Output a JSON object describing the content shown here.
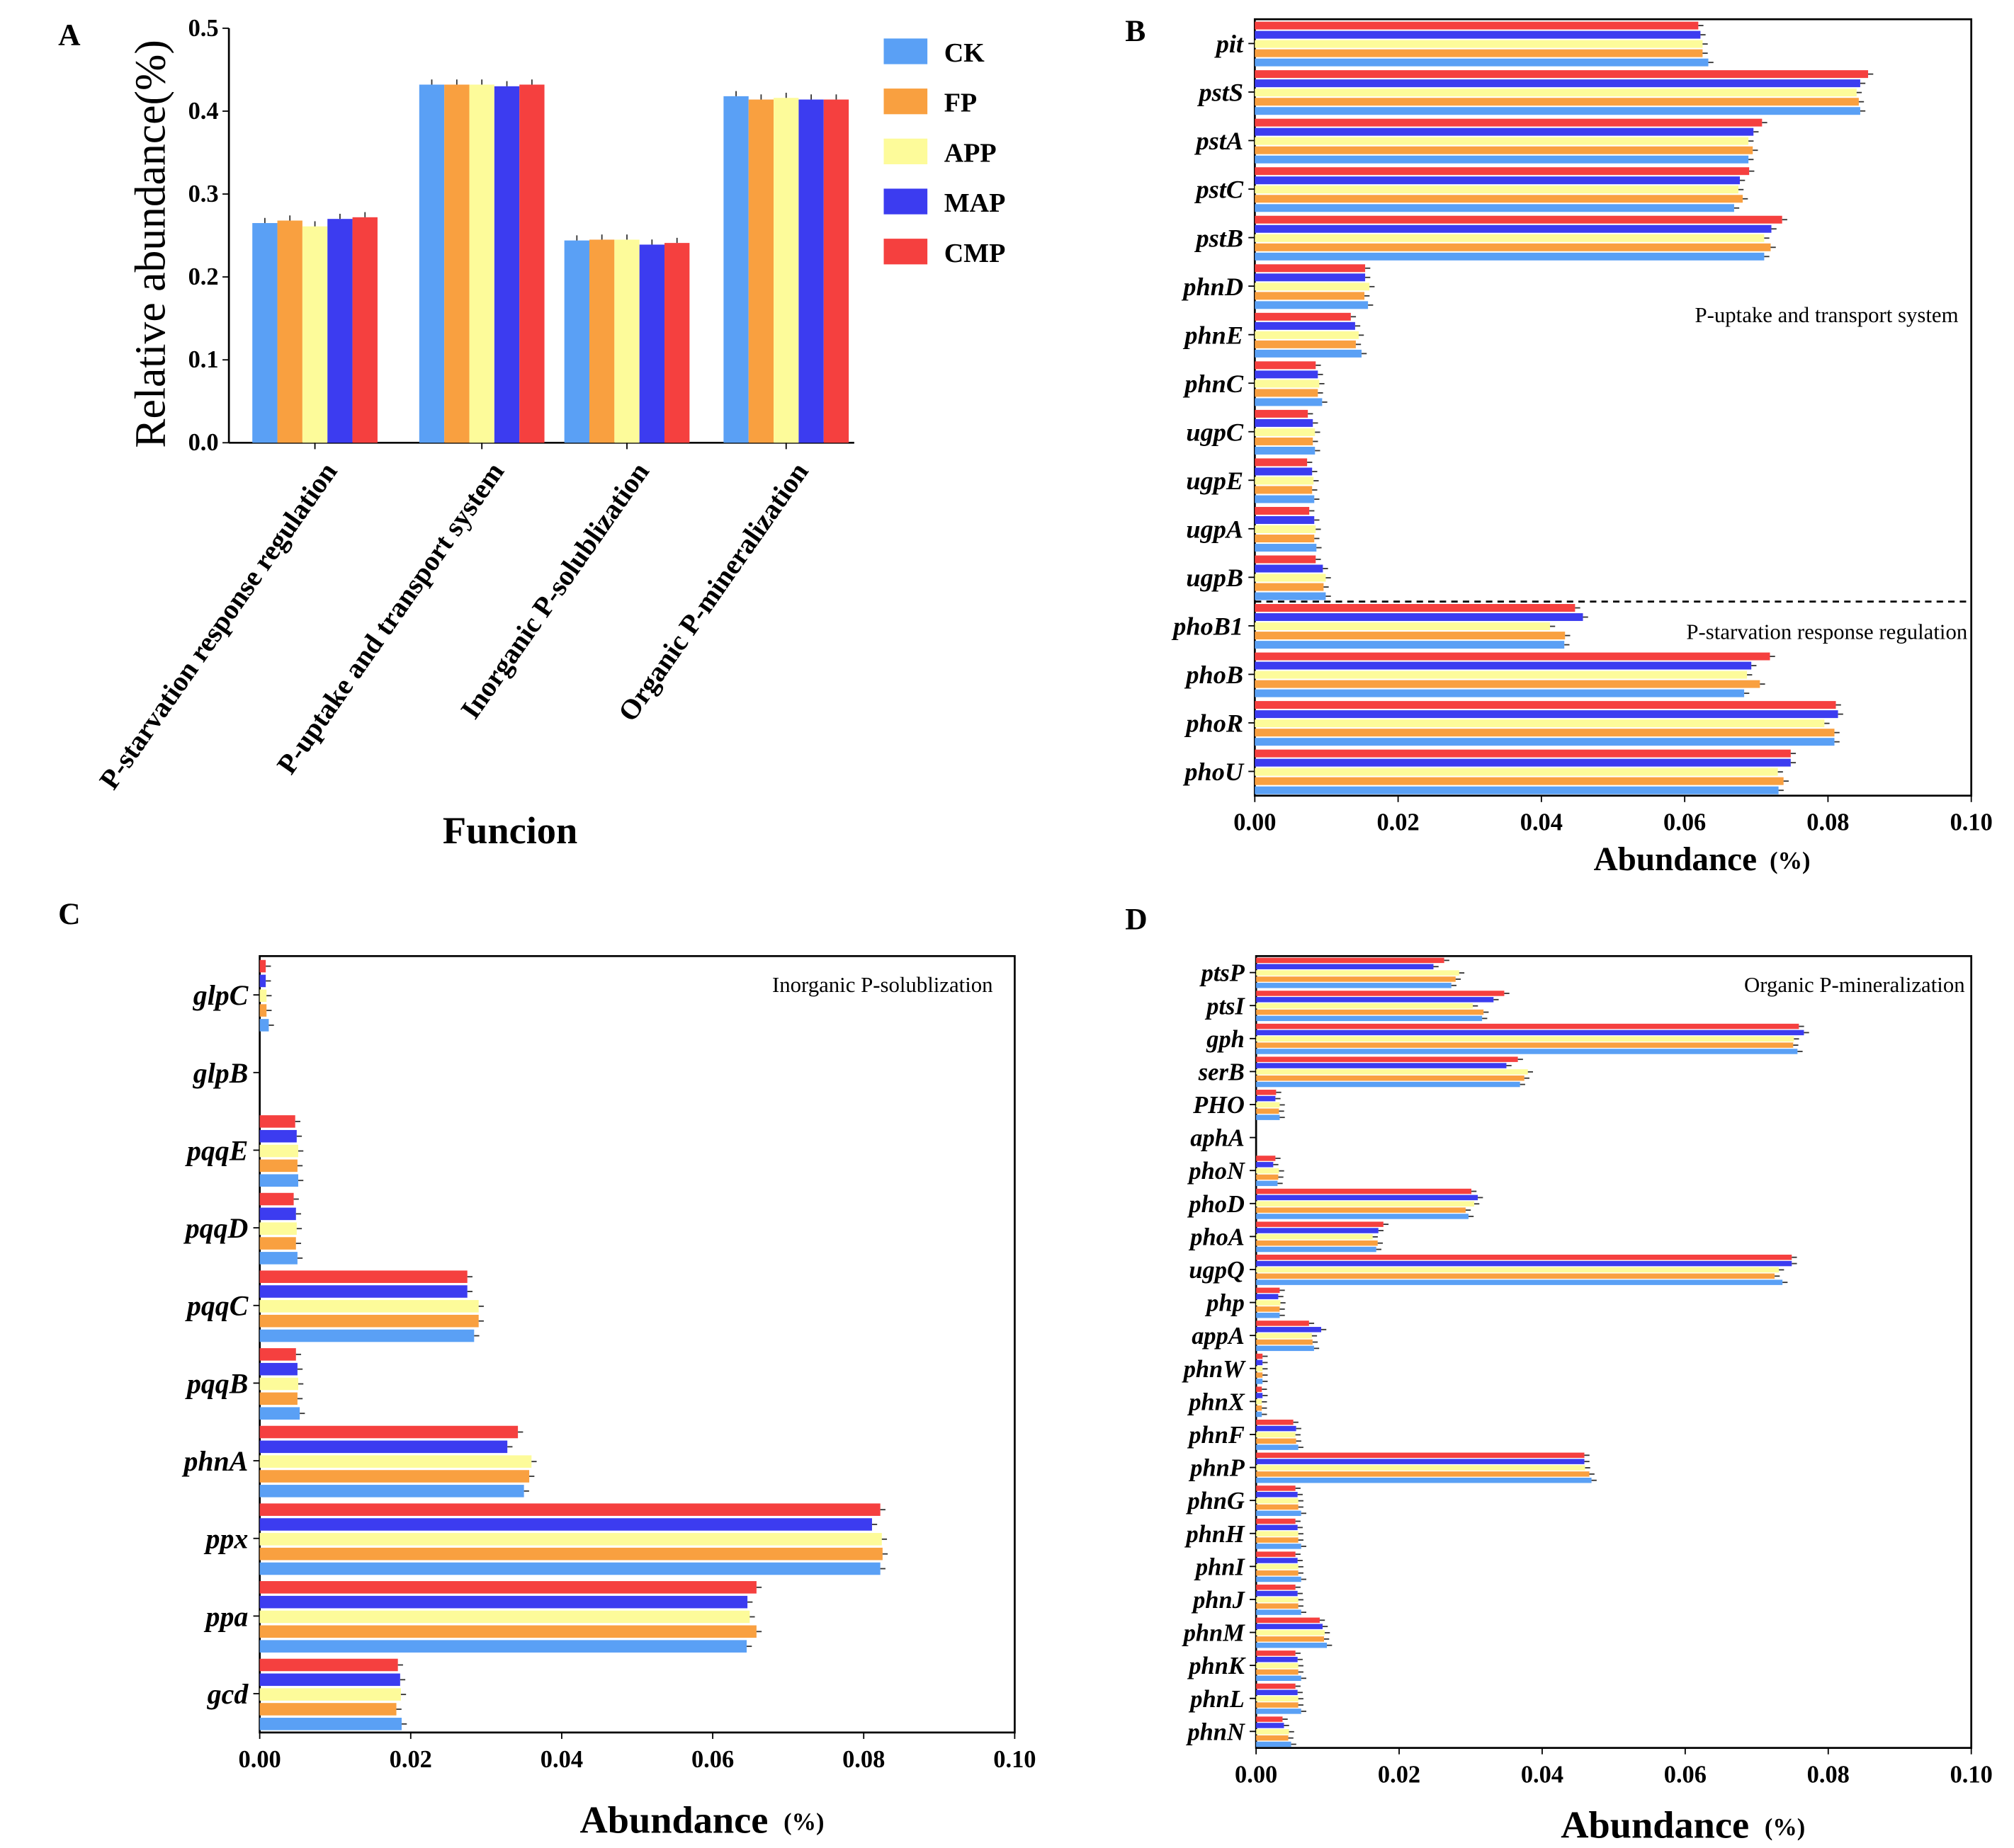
{
  "series_colors": {
    "CK": "#5aa0f5",
    "FP": "#f9a040",
    "APP": "#fdfb9a",
    "MAP": "#3c3cf0",
    "CMP": "#f5403f"
  },
  "chart_data": [
    {
      "panel_label": "A",
      "type": "bar",
      "orientation": "vertical",
      "categories": [
        "P-starvation response regulation",
        "P-uptake and transport system",
        "Inorganic P-solublization",
        "Organic P-mineralization"
      ],
      "series": [
        {
          "name": "CK",
          "values": [
            0.265,
            0.432,
            0.244,
            0.418
          ]
        },
        {
          "name": "FP",
          "values": [
            0.268,
            0.432,
            0.245,
            0.414
          ]
        },
        {
          "name": "APP",
          "values": [
            0.261,
            0.432,
            0.245,
            0.416
          ]
        },
        {
          "name": "MAP",
          "values": [
            0.27,
            0.43,
            0.239,
            0.414
          ]
        },
        {
          "name": "CMP",
          "values": [
            0.272,
            0.432,
            0.241,
            0.414
          ]
        }
      ],
      "ylabel": "Relative abundance(%)",
      "xlabel": "Funcion",
      "ylim": [
        0,
        0.5
      ],
      "yticks": [
        "0.0",
        "0.1",
        "0.2",
        "0.3",
        "0.4",
        "0.5"
      ],
      "legend": [
        "CK",
        "FP",
        "APP",
        "MAP",
        "CMP"
      ],
      "legend_position": "top-right"
    },
    {
      "panel_label": "B",
      "type": "bar",
      "orientation": "horizontal",
      "categories": [
        "pit",
        "pstS",
        "pstA",
        "pstC",
        "pstB",
        "phnD",
        "phnE",
        "phnC",
        "ugpC",
        "ugpE",
        "ugpA",
        "ugpB",
        "phoB1",
        "phoB",
        "phoR",
        "phoU"
      ],
      "series": [
        {
          "name": "CK",
          "values": [
            0.0633,
            0.0845,
            0.0689,
            0.0669,
            0.0711,
            0.0158,
            0.0149,
            0.0094,
            0.0084,
            0.0083,
            0.0086,
            0.0099,
            0.0432,
            0.0683,
            0.0809,
            0.0731
          ]
        },
        {
          "name": "FP",
          "values": [
            0.0625,
            0.0843,
            0.0695,
            0.0681,
            0.072,
            0.0153,
            0.0141,
            0.0088,
            0.0081,
            0.008,
            0.0083,
            0.0096,
            0.0433,
            0.0705,
            0.0809,
            0.0738
          ]
        },
        {
          "name": "APP",
          "values": [
            0.0625,
            0.084,
            0.0689,
            0.0675,
            0.0711,
            0.016,
            0.0145,
            0.009,
            0.0084,
            0.0082,
            0.0085,
            0.0099,
            0.0412,
            0.0687,
            0.0795,
            0.073
          ]
        },
        {
          "name": "MAP",
          "values": [
            0.0622,
            0.0845,
            0.0696,
            0.0677,
            0.0721,
            0.0154,
            0.014,
            0.0088,
            0.0081,
            0.008,
            0.0083,
            0.0095,
            0.0458,
            0.0693,
            0.0814,
            0.0748
          ]
        },
        {
          "name": "CMP",
          "values": [
            0.0619,
            0.0856,
            0.0708,
            0.069,
            0.0736,
            0.0154,
            0.0134,
            0.0085,
            0.0074,
            0.0073,
            0.0076,
            0.0085,
            0.0447,
            0.0719,
            0.0811,
            0.0748
          ]
        }
      ],
      "xlabel": "Abundance",
      "xlabel_unit": "(%)",
      "xlim": [
        0,
        0.1
      ],
      "xticks": [
        "0.00",
        "0.02",
        "0.04",
        "0.06",
        "0.08",
        "0.10"
      ],
      "divider_after": "ugpB",
      "annotations": [
        "P-uptake and transport system",
        "P-starvation response regulation"
      ]
    },
    {
      "panel_label": "C",
      "type": "bar",
      "orientation": "horizontal",
      "categories": [
        "glpC",
        "glpB",
        "pqqE",
        "pqqD",
        "pqqC",
        "pqqB",
        "phnA",
        "ppx",
        "ppa",
        "gcd"
      ],
      "series": [
        {
          "name": "CK",
          "values": [
            0.0012,
            0,
            0.0051,
            0.005,
            0.0284,
            0.0053,
            0.035,
            0.0822,
            0.0645,
            0.0188
          ]
        },
        {
          "name": "FP",
          "values": [
            0.0009,
            0,
            0.005,
            0.0048,
            0.029,
            0.005,
            0.0357,
            0.0825,
            0.0658,
            0.0181
          ]
        },
        {
          "name": "APP",
          "values": [
            0.0009,
            0,
            0.0051,
            0.0049,
            0.029,
            0.0051,
            0.036,
            0.0824,
            0.0649,
            0.0187
          ]
        },
        {
          "name": "MAP",
          "values": [
            0.0008,
            0,
            0.0049,
            0.0048,
            0.0275,
            0.005,
            0.0328,
            0.0811,
            0.0646,
            0.0186
          ]
        },
        {
          "name": "CMP",
          "values": [
            0.0008,
            0,
            0.0047,
            0.0045,
            0.0275,
            0.0048,
            0.0342,
            0.0822,
            0.0658,
            0.0183
          ]
        }
      ],
      "xlabel": "Abundance",
      "xlabel_unit": "(%)",
      "xlim": [
        0,
        0.1
      ],
      "xticks": [
        "0.00",
        "0.02",
        "0.04",
        "0.06",
        "0.08",
        "0.10"
      ],
      "annotations": [
        "Inorganic P-solublization"
      ]
    },
    {
      "panel_label": "D",
      "type": "bar",
      "orientation": "horizontal",
      "categories": [
        "ptsP",
        "ptsI",
        "gph",
        "serB",
        "PHO",
        "aphA",
        "phoN",
        "phoD",
        "phoA",
        "ugpQ",
        "php",
        "appA",
        "phnW",
        "phnX",
        "phnF",
        "phnP",
        "phnG",
        "phnH",
        "phnI",
        "phnJ",
        "phnM",
        "phnK",
        "phnL",
        "phnN"
      ],
      "series": [
        {
          "name": "CK",
          "values": [
            0.0273,
            0.0316,
            0.0757,
            0.0369,
            0.0033,
            0,
            0.003,
            0.0297,
            0.0168,
            0.0736,
            0.0033,
            0.0081,
            0.0009,
            0.0008,
            0.0059,
            0.0469,
            0.0063,
            0.0063,
            0.0063,
            0.0063,
            0.0099,
            0.0063,
            0.0063,
            0.0049
          ]
        },
        {
          "name": "FP",
          "values": [
            0.0279,
            0.0318,
            0.0751,
            0.0375,
            0.0032,
            0,
            0.0031,
            0.0293,
            0.017,
            0.0725,
            0.0033,
            0.0079,
            0.0009,
            0.0008,
            0.0056,
            0.0466,
            0.0059,
            0.0059,
            0.0059,
            0.0059,
            0.0095,
            0.0059,
            0.0059,
            0.0045
          ]
        },
        {
          "name": "APP",
          "values": [
            0.0284,
            0.0303,
            0.0752,
            0.038,
            0.0033,
            0,
            0.0032,
            0.0305,
            0.0163,
            0.0731,
            0.0034,
            0.0078,
            0.0009,
            0.0008,
            0.0055,
            0.046,
            0.0059,
            0.0059,
            0.0059,
            0.0059,
            0.0096,
            0.0059,
            0.0059,
            0.0046
          ]
        },
        {
          "name": "MAP",
          "values": [
            0.0248,
            0.0332,
            0.0766,
            0.035,
            0.0027,
            0,
            0.0024,
            0.031,
            0.0171,
            0.0749,
            0.0031,
            0.0091,
            0.0009,
            0.0009,
            0.0056,
            0.0459,
            0.0058,
            0.0058,
            0.0058,
            0.0058,
            0.0093,
            0.0058,
            0.0058,
            0.0039
          ]
        },
        {
          "name": "CMP",
          "values": [
            0.0263,
            0.0347,
            0.0759,
            0.0366,
            0.0028,
            0,
            0.0027,
            0.0301,
            0.0178,
            0.0749,
            0.0033,
            0.0074,
            0.0009,
            0.0008,
            0.0052,
            0.0459,
            0.0055,
            0.0055,
            0.0055,
            0.0055,
            0.0089,
            0.0055,
            0.0055,
            0.0037
          ]
        }
      ],
      "xlabel": "Abundance",
      "xlabel_unit": "(%)",
      "xlim": [
        0,
        0.1
      ],
      "xticks": [
        "0.00",
        "0.02",
        "0.04",
        "0.06",
        "0.08",
        "0.10"
      ],
      "annotations": [
        "Organic P-mineralization"
      ]
    }
  ]
}
